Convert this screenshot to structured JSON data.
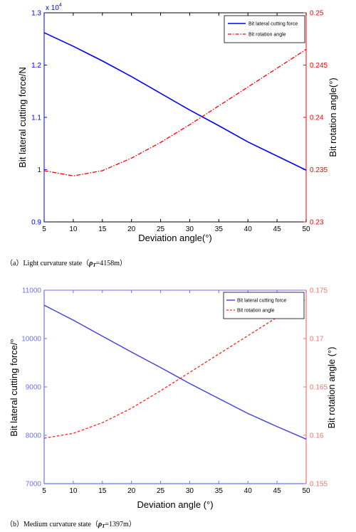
{
  "chart_data": [
    {
      "type": "line",
      "title": "",
      "x": [
        5,
        10,
        15,
        20,
        25,
        30,
        35,
        40,
        45,
        50
      ],
      "xlabel": "Deviation angle(°)",
      "xlim": [
        5,
        50
      ],
      "xticks": [
        5,
        10,
        15,
        20,
        25,
        30,
        35,
        40,
        45,
        50
      ],
      "ylabel_left": "Bit lateral cutting force/N",
      "ylim_left": [
        0.9,
        1.3
      ],
      "yticks_left": [
        0.9,
        1,
        1.1,
        1.2,
        1.3
      ],
      "yticklabels_left": [
        "0.9",
        "1",
        "1.1",
        "1.2",
        "1.3"
      ],
      "left_multiplier_label": "x 10",
      "left_multiplier_exp": "4",
      "ylabel_right": "Bit rotation angle(°)",
      "ylim_right": [
        0.23,
        0.25
      ],
      "yticks_right": [
        0.23,
        0.235,
        0.24,
        0.245,
        0.25
      ],
      "yticklabels_right": [
        "0.23",
        "0.235",
        "0.24",
        "0.245",
        "0.25"
      ],
      "grid": false,
      "legend_position": "top-right",
      "series": [
        {
          "name": "Bit lateral cutting force",
          "axis": "left",
          "color": "#0000ff",
          "style": "solid",
          "values": [
            1.262,
            1.236,
            1.208,
            1.178,
            1.146,
            1.114,
            1.084,
            1.053,
            1.026,
            0.999
          ]
        },
        {
          "name": "Bit rotation angle",
          "axis": "right",
          "color": "#ff0000",
          "style": "dashdot",
          "values": [
            0.2349,
            0.2344,
            0.2349,
            0.2361,
            0.2376,
            0.2393,
            0.2411,
            0.2429,
            0.2447,
            0.2465
          ]
        }
      ],
      "caption_text": "（a）Light curvature state（",
      "caption_symbol": "ρ",
      "caption_sub": "T",
      "caption_value": "=4158m）",
      "colors": {
        "left_axis": "#0000ff",
        "right_axis": "#ff0000",
        "frame": "#000000"
      }
    },
    {
      "type": "line",
      "title": "",
      "x": [
        5,
        10,
        15,
        20,
        25,
        30,
        35,
        40,
        45,
        50
      ],
      "xlabel": "Deviation angle (°)",
      "xlim": [
        5,
        50
      ],
      "xticks": [
        5,
        10,
        15,
        20,
        25,
        30,
        35,
        40,
        45,
        50
      ],
      "ylabel_left": "Bit lateral cutting force/°",
      "ylim_left": [
        7000,
        11000
      ],
      "yticks_left": [
        7000,
        8000,
        9000,
        10000,
        11000
      ],
      "yticklabels_left": [
        "7000",
        "8000",
        "9000",
        "10000",
        "11000"
      ],
      "ylabel_right": "Bit rotation angle (°)",
      "ylim_right": [
        0.155,
        0.175
      ],
      "yticks_right": [
        0.155,
        0.16,
        0.165,
        0.17,
        0.175
      ],
      "yticklabels_right": [
        "0.155",
        "0.16",
        "0.165",
        "0.17",
        "0.175"
      ],
      "grid": false,
      "legend_position": "top-right",
      "series": [
        {
          "name": "Bit lateral cutting force",
          "axis": "left",
          "color": "#4040e0",
          "style": "solid",
          "values": [
            10690,
            10380,
            10050,
            9720,
            9400,
            9070,
            8760,
            8450,
            8180,
            7920
          ]
        },
        {
          "name": "Bit rotation angle",
          "axis": "right",
          "color": "#ff2020",
          "style": "dashed",
          "values": [
            0.1597,
            0.1602,
            0.1613,
            0.1628,
            0.1646,
            0.1665,
            0.1684,
            0.1703,
            0.1722,
            0.1741
          ]
        }
      ],
      "caption_text": "（b）Medium curvature state（",
      "caption_symbol": "ρ",
      "caption_sub": "T",
      "caption_value": "=1397m）",
      "colors": {
        "left_axis": "#6f6fff",
        "right_axis": "#ff6f6f",
        "frame": "#6f6fff"
      }
    }
  ]
}
